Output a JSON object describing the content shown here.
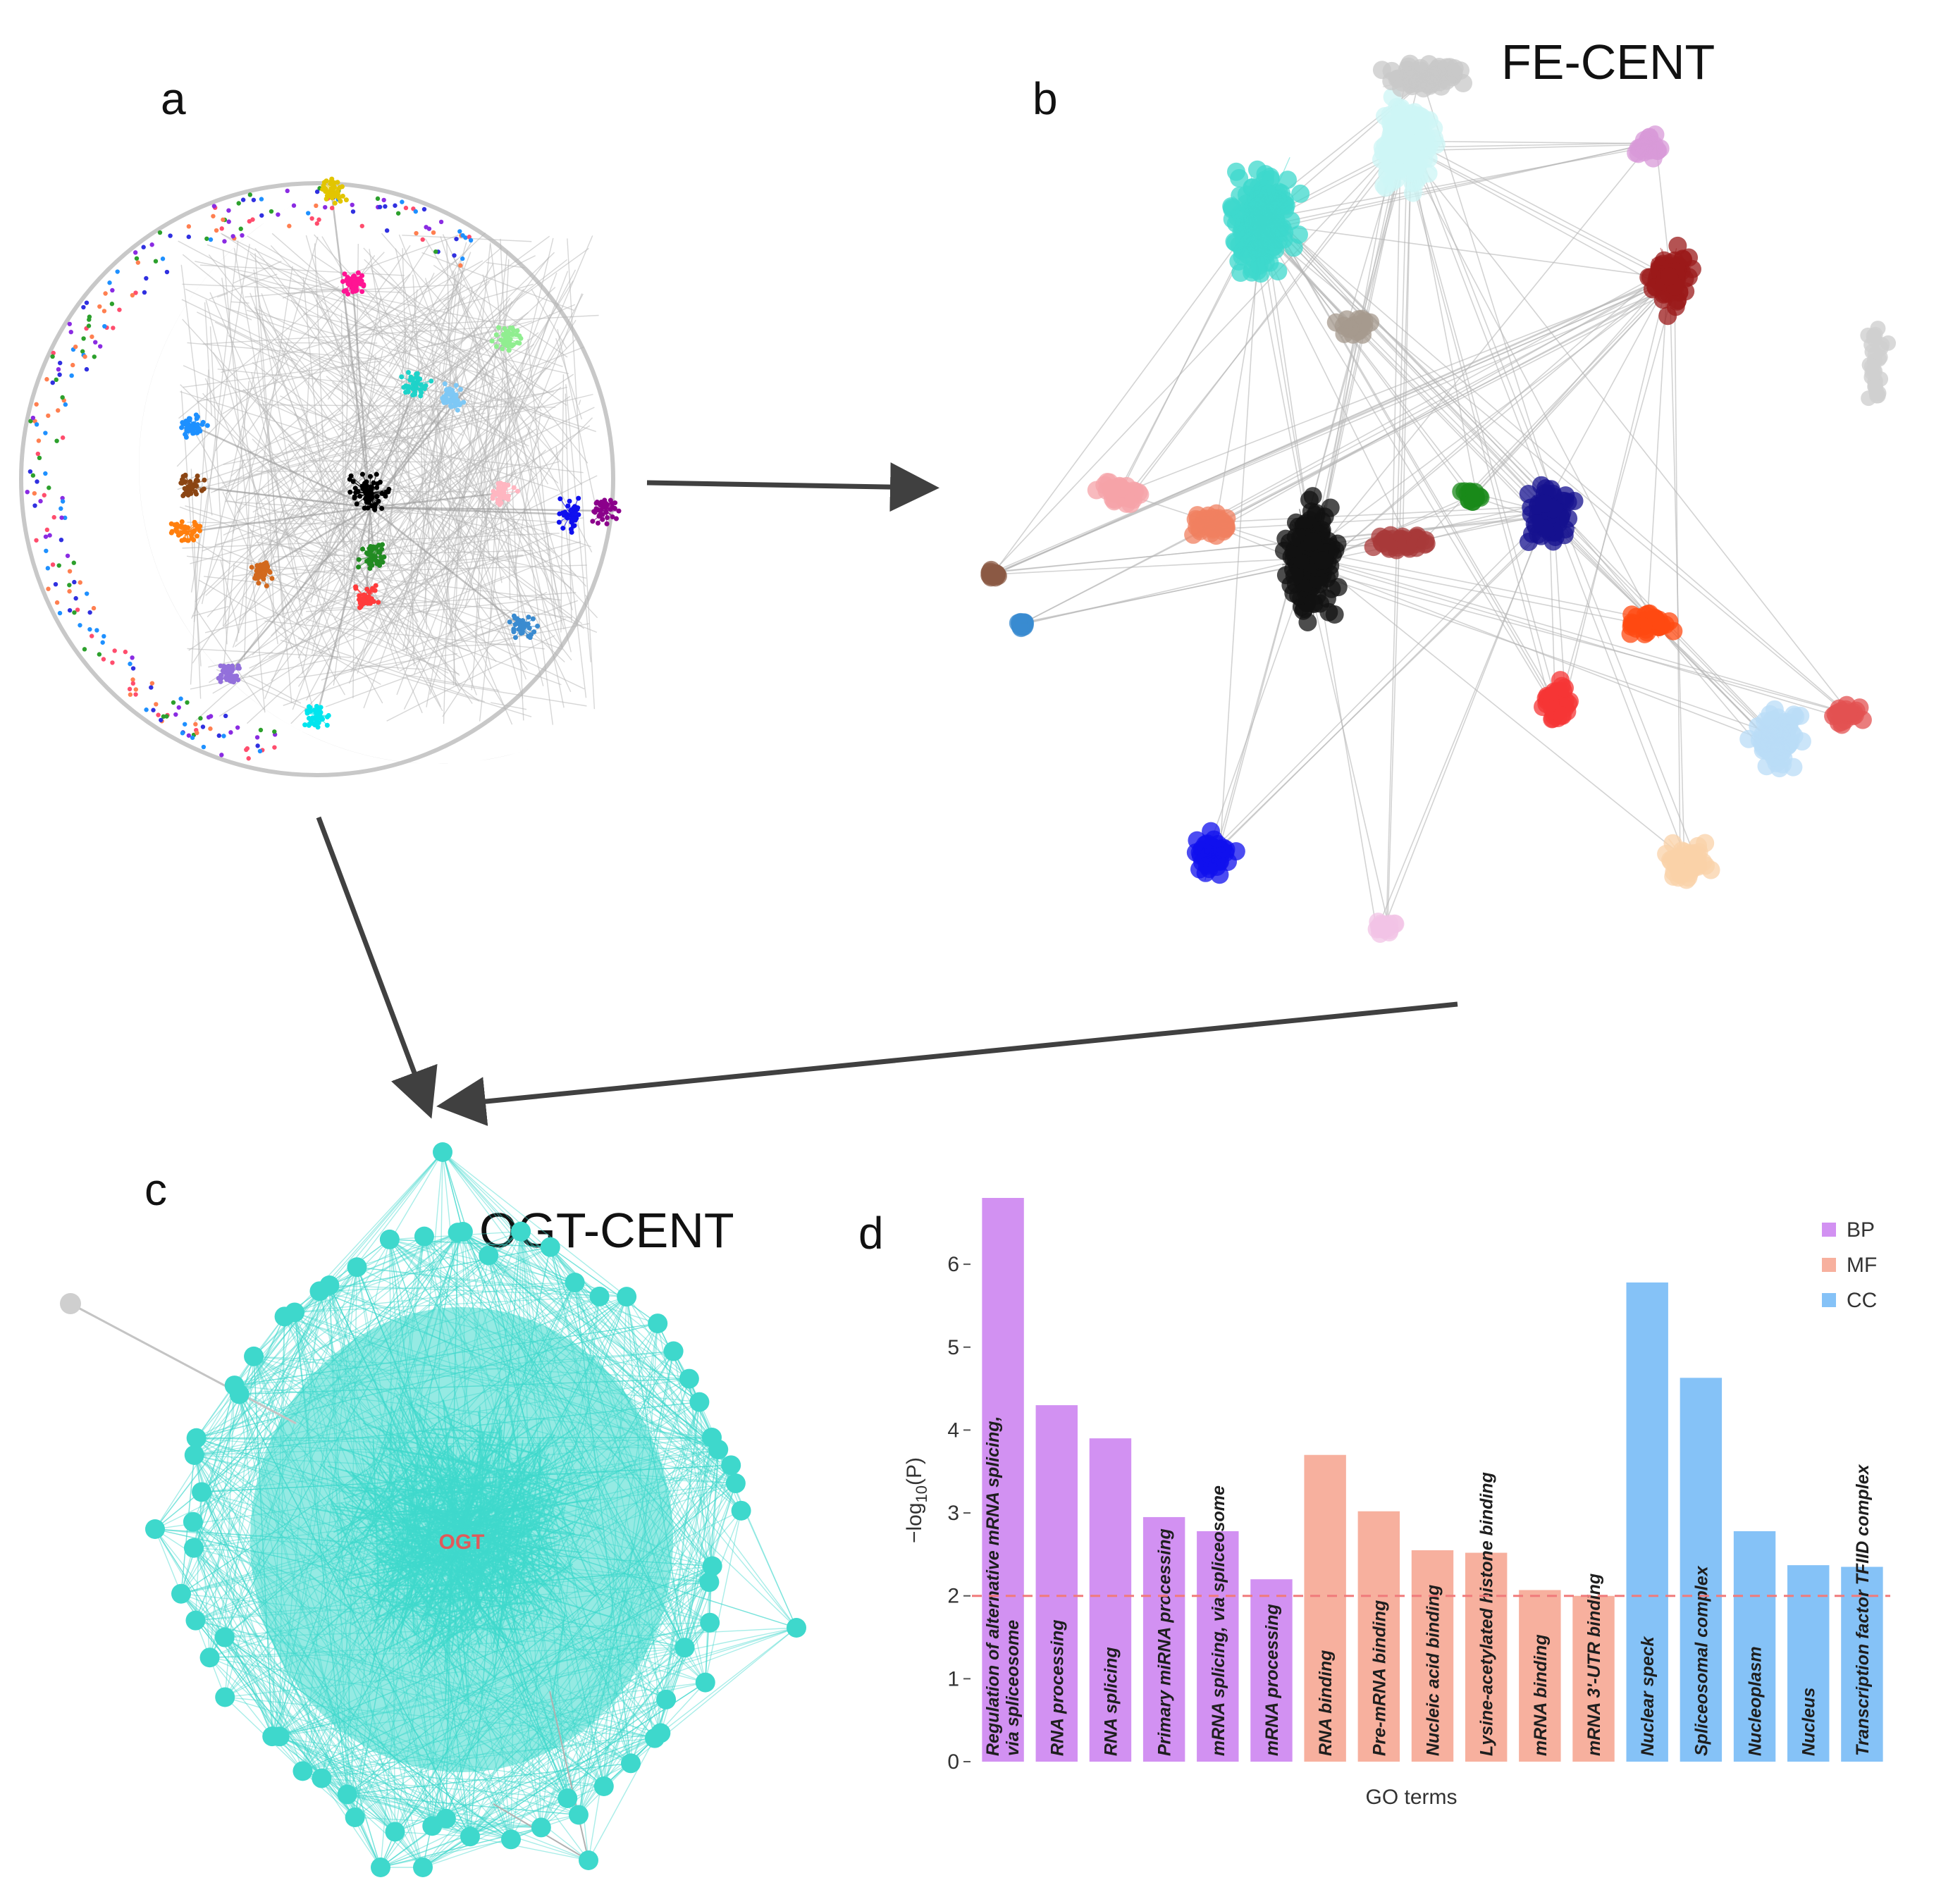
{
  "panels": {
    "a": {
      "letter": "a"
    },
    "b": {
      "letter": "b",
      "title": "FE-CENT"
    },
    "c": {
      "letter": "c",
      "title": "OGT-CENT",
      "hub_label": "OGT"
    },
    "d": {
      "letter": "d"
    }
  },
  "colors": {
    "BP": "#d291f2",
    "MF": "#f7b09e",
    "CC": "#85c2f7",
    "threshold_line": "#f07b7b",
    "network_teal": "#3ed8cc",
    "edge_gray": "#bdbdbd",
    "arrow": "#404040"
  },
  "network_b_clusters": [
    {
      "color": "#3ed8cc"
    },
    {
      "color": "#cdf5f6"
    },
    {
      "color": "#d89ad8"
    },
    {
      "color": "#9b1a1a"
    },
    {
      "color": "#c8c8c8"
    },
    {
      "color": "#a59a8e"
    },
    {
      "color": "#f6a3a8"
    },
    {
      "color": "#f08060"
    },
    {
      "color": "#111111"
    },
    {
      "color": "#15128f"
    },
    {
      "color": "#1a8a1a"
    },
    {
      "color": "#ff4a12"
    },
    {
      "color": "#f53535"
    },
    {
      "color": "#b9dcf7"
    },
    {
      "color": "#e35252"
    },
    {
      "color": "#f9d2a8"
    },
    {
      "color": "#1010ee"
    },
    {
      "color": "#f2c3e6"
    },
    {
      "color": "#8b5a44"
    },
    {
      "color": "#3a8bd0"
    },
    {
      "color": "#a83a3a"
    }
  ],
  "network_a_clusters": [
    {
      "color": "#e2c500"
    },
    {
      "color": "#ff1493"
    },
    {
      "color": "#1fd3c9"
    },
    {
      "color": "#7ec8f5"
    },
    {
      "color": "#8b4513"
    },
    {
      "color": "#ff7f0e"
    },
    {
      "color": "#1e90ff"
    },
    {
      "color": "#9370db"
    },
    {
      "color": "#00e5ee"
    },
    {
      "color": "#3a8bd0"
    },
    {
      "color": "#ff3c3c"
    },
    {
      "color": "#1010ee"
    },
    {
      "color": "#000000"
    },
    {
      "color": "#8b008b"
    },
    {
      "color": "#228b22"
    },
    {
      "color": "#d2691e"
    },
    {
      "color": "#90ee90"
    },
    {
      "color": "#ffb6c1"
    }
  ],
  "chart_data": {
    "type": "bar",
    "title": "",
    "xlabel": "GO terms",
    "ylabel": "-log10(P)",
    "ylim": [
      0,
      6.8
    ],
    "yticks": [
      "0",
      "1",
      "2",
      "3",
      "4",
      "5",
      "6"
    ],
    "threshold": 2,
    "legend": {
      "position": "top-right",
      "entries": [
        {
          "name": "BP",
          "color": "#d291f2"
        },
        {
          "name": "MF",
          "color": "#f7b09e"
        },
        {
          "name": "CC",
          "color": "#85c2f7"
        }
      ]
    },
    "categories": [
      "Regulation of alternative mRNA splicing, via spliceosome",
      "RNA processing",
      "RNA splicing",
      "Primary miRNA processing",
      "mRNA splicing, via spliceosome",
      "mRNA processing",
      "RNA binding",
      "Pre-mRNA binding",
      "Nucleic acid binding",
      "Lysine-acetylated histone binding",
      "mRNA binding",
      "mRNA 3'-UTR binding",
      "Nuclear speck",
      "Spliceosomal complex",
      "Nucleoplasm",
      "Nucleus",
      "Transcription factor TFIID complex"
    ],
    "label_lines": [
      [
        "Regulation of alternative mRNA splicing,",
        "via spliceosome"
      ],
      [
        "RNA processing"
      ],
      [
        "RNA splicing"
      ],
      [
        "Primary miRNA processing"
      ],
      [
        "mRNA splicing, via spliceosome"
      ],
      [
        "mRNA processing"
      ],
      [
        "RNA binding"
      ],
      [
        "Pre-mRNA binding"
      ],
      [
        "Nucleic acid binding"
      ],
      [
        "Lysine-acetylated histone binding"
      ],
      [
        "mRNA binding"
      ],
      [
        "mRNA 3'-UTR binding"
      ],
      [
        "Nuclear speck"
      ],
      [
        "Spliceosomal complex"
      ],
      [
        "Nucleoplasm"
      ],
      [
        "Nucleus"
      ],
      [
        "Transcription factor TFIID complex"
      ]
    ],
    "groups": [
      "BP",
      "BP",
      "BP",
      "BP",
      "BP",
      "BP",
      "MF",
      "MF",
      "MF",
      "MF",
      "MF",
      "MF",
      "CC",
      "CC",
      "CC",
      "CC",
      "CC"
    ],
    "values": [
      6.8,
      4.3,
      3.9,
      2.95,
      2.78,
      2.2,
      3.7,
      3.02,
      2.55,
      2.52,
      2.07,
      2.0,
      5.78,
      4.63,
      2.78,
      2.37,
      2.35
    ]
  }
}
